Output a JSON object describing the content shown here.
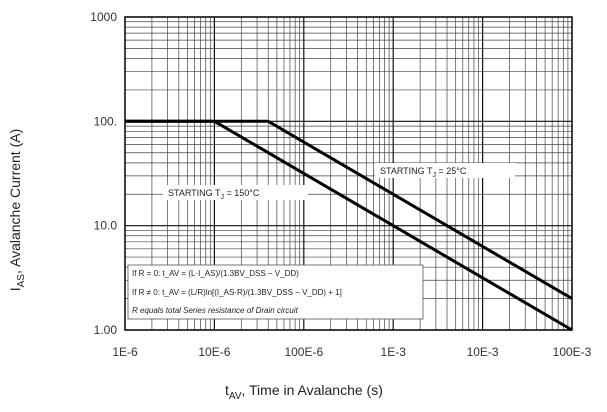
{
  "chart_data": {
    "type": "line",
    "x_scale": "log",
    "y_scale": "log",
    "xlim": [
      1e-06,
      0.1
    ],
    "ylim": [
      1,
      1000
    ],
    "grid": true,
    "x_ticks": [
      {
        "value": 1e-06,
        "label": "1E-6"
      },
      {
        "value": 1e-05,
        "label": "10E-6"
      },
      {
        "value": 0.0001,
        "label": "100E-6"
      },
      {
        "value": 0.001,
        "label": "1E-3"
      },
      {
        "value": 0.01,
        "label": "10E-3"
      },
      {
        "value": 0.1,
        "label": "100E-3"
      }
    ],
    "y_ticks": [
      {
        "value": 1000,
        "label": "1000"
      },
      {
        "value": 100,
        "label": "100."
      },
      {
        "value": 10,
        "label": "10.0"
      },
      {
        "value": 1,
        "label": "1.00"
      }
    ],
    "xlabel_main": "t",
    "xlabel_sub": "AV",
    "xlabel_rest": ", Time in Avalanche (s)",
    "ylabel_main": "I",
    "ylabel_sub": "AS",
    "ylabel_rest": ", Avalanche Current (A)",
    "series": [
      {
        "name": "STARTING T J = 25°C",
        "points": [
          [
            1e-06,
            100
          ],
          [
            4e-05,
            100
          ],
          [
            0.1,
            2
          ]
        ]
      },
      {
        "name": "STARTING T J = 150°C",
        "points": [
          [
            1e-06,
            100
          ],
          [
            1e-05,
            100
          ],
          [
            0.1,
            1
          ]
        ]
      }
    ],
    "annotations": {
      "label_25": "STARTING T",
      "label_25_sub": "J",
      "label_25_rest": " = 25°C",
      "label_150": "STARTING T",
      "label_150_sub": "J",
      "label_150_rest": " = 150°C",
      "formula_1": "If R = 0: t_AV = (L·I_AS)/(1.3BV_DSS − V_DD)",
      "formula_2": "If R ≠ 0: t_AV = (L/R)ln[(I_AS·R)/(1.3BV_DSS − V_DD) + 1]",
      "formula_note": "R equals total Series resistance of Drain circuit"
    }
  }
}
